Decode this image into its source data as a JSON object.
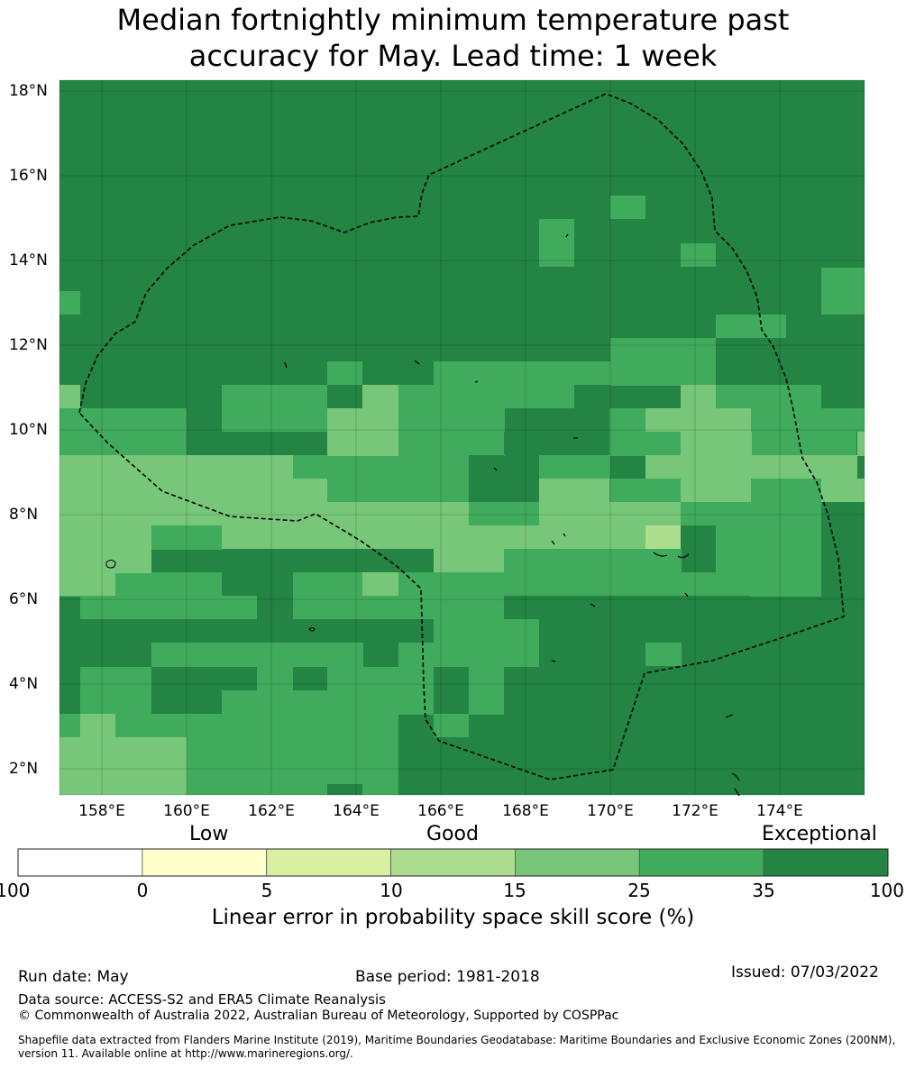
{
  "title_lines": [
    "Median fortnightly minimum temperature past",
    "accuracy for May. Lead time: 1 week"
  ],
  "map": {
    "lat_labels": [
      "18°N",
      "16°N",
      "14°N",
      "12°N",
      "10°N",
      "8°N",
      "6°N",
      "4°N",
      "2°N"
    ],
    "lon_labels": [
      "158°E",
      "160°E",
      "162°E",
      "164°E",
      "166°E",
      "168°E",
      "170°E",
      "172°E",
      "174°E"
    ],
    "grid_lines": true,
    "boundary_style": "dashed black EEZ outline",
    "skill_class_colors": {
      "<0": "#ffffff",
      "0-5": "#ffffcc",
      "5-10": "#d9f0a3",
      "10-15": "#addd8e",
      "15-25": "#78c679",
      "25-35": "#41ab5d",
      "35-100": "#238443"
    }
  },
  "colorbar": {
    "category_labels": [
      "Low",
      "Good",
      "Exceptional"
    ],
    "ticks": [
      "-100",
      "0",
      "5",
      "10",
      "15",
      "25",
      "35",
      "100"
    ],
    "colors": [
      "#ffffff",
      "#ffffcc",
      "#d9f0a3",
      "#addd8e",
      "#78c679",
      "#41ab5d",
      "#238443"
    ],
    "label": "Linear error in probability space skill score (%)"
  },
  "footer": {
    "run_date": "Run date: May",
    "base_period": "Base period: 1981-2018",
    "issued": "Issued: 07/03/2022",
    "data_source": "Data source: ACCESS-S2 and ERA5 Climate Reanalysis",
    "copyright": "© Commonwealth of Australia 2022, Australian Bureau of Meteorology, Supported by COSPPac",
    "shapefile_note": "Shapefile data extracted from Flanders Marine Institute (2019), Maritime Boundaries Geodatabase: Maritime Boundaries and Exclusive Economic Zones (200NM), version 11. Available online at http://www.marineregions.org/."
  }
}
